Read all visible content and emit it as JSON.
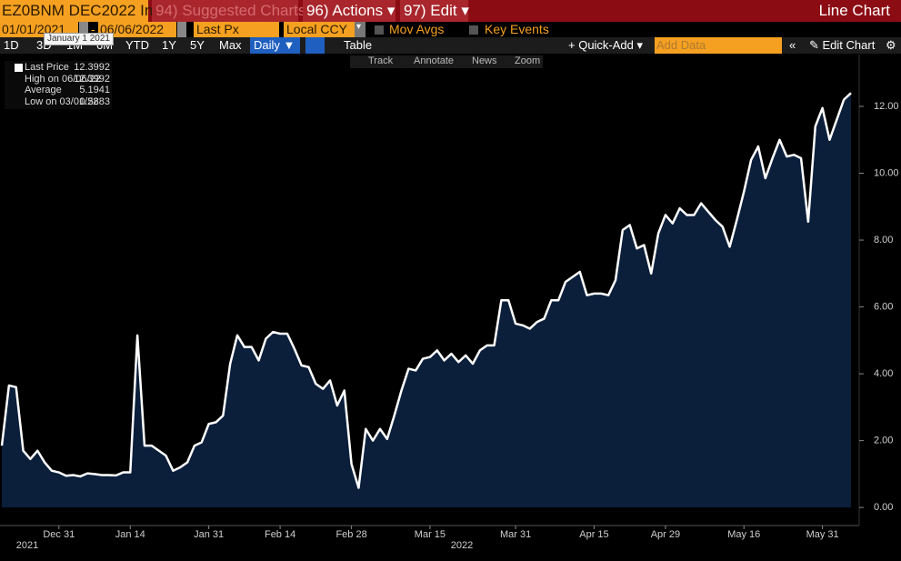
{
  "header": {
    "security": "EZ0BNM DEC2022 In",
    "suggested": "94) Suggested Charts",
    "actions": "96) Actions",
    "edit": "97) Edit",
    "view": "Line Chart"
  },
  "controls": {
    "start_date": "01/01/2021",
    "end_date": "06/06/2022",
    "tooltip": "January 1 2021",
    "field": "Last Px",
    "currency": "Local CCY",
    "mov_avgs": "Mov Avgs",
    "key_events": "Key Events"
  },
  "toolbar": {
    "ranges": [
      "1D",
      "3D",
      "1M",
      "6M",
      "YTD",
      "1Y",
      "5Y",
      "Max"
    ],
    "frequency": "Daily ▼",
    "table": "Table",
    "quick_add": "+ Quick-Add ▾",
    "add_data": "Add Data",
    "edit_chart": "Edit Chart"
  },
  "chart_tools": [
    "Track",
    "Annotate",
    "News",
    "Zoom"
  ],
  "legend": [
    {
      "label": "Last Price",
      "value": "12.3992"
    },
    {
      "label": "High on 06/06/22",
      "value": "12.3992"
    },
    {
      "label": "Average",
      "value": "5.1941"
    },
    {
      "label": "Low on 03/01/22",
      "value": "0.5883"
    }
  ],
  "chart_data": {
    "type": "area",
    "categories": [
      null,
      null,
      null,
      null,
      null,
      null,
      null,
      null,
      "Dec 31",
      null,
      null,
      null,
      null,
      null,
      null,
      null,
      null,
      null,
      "Jan 14",
      null,
      null,
      null,
      null,
      null,
      null,
      null,
      null,
      null,
      null,
      "Jan 31",
      null,
      null,
      null,
      null,
      null,
      null,
      null,
      null,
      null,
      "Feb 14",
      null,
      null,
      null,
      null,
      null,
      null,
      null,
      null,
      null,
      "Feb 28",
      null,
      null,
      null,
      null,
      null,
      null,
      null,
      null,
      null,
      null,
      "Mar 15",
      null,
      null,
      null,
      null,
      null,
      null,
      null,
      null,
      null,
      null,
      null,
      "Mar 31",
      null,
      null,
      null,
      null,
      null,
      null,
      null,
      null,
      null,
      null,
      "Apr 15",
      null,
      null,
      null,
      null,
      null,
      null,
      null,
      null,
      null,
      "Apr 29",
      null,
      null,
      null,
      null,
      null,
      null,
      null,
      null,
      null,
      null,
      "May 16",
      null,
      null,
      null,
      null,
      null,
      null,
      null,
      null,
      null,
      null,
      "May 31",
      null,
      null,
      null,
      null
    ],
    "year_labels": [
      "2021",
      "2022"
    ],
    "series": [
      {
        "name": "Last Price",
        "color": "#ffffff",
        "fill": "#0b1f3b",
        "values": [
          1.85,
          3.65,
          3.6,
          1.7,
          1.45,
          1.7,
          1.35,
          1.1,
          1.05,
          0.95,
          0.97,
          0.93,
          1.02,
          1.0,
          0.97,
          0.97,
          0.96,
          1.05,
          1.05,
          5.15,
          1.85,
          1.85,
          1.7,
          1.55,
          1.1,
          1.2,
          1.35,
          1.85,
          1.95,
          2.5,
          2.55,
          2.75,
          4.3,
          5.15,
          4.8,
          4.8,
          4.4,
          5.05,
          5.25,
          5.2,
          5.2,
          4.75,
          4.25,
          4.2,
          3.7,
          3.55,
          3.8,
          3.05,
          3.5,
          1.3,
          0.5883,
          2.35,
          2.0,
          2.35,
          2.05,
          2.75,
          3.5,
          4.15,
          4.1,
          4.45,
          4.5,
          4.7,
          4.4,
          4.6,
          4.35,
          4.55,
          4.3,
          4.7,
          4.85,
          4.85,
          6.2,
          6.2,
          5.5,
          5.45,
          5.35,
          5.55,
          5.65,
          6.2,
          6.2,
          6.75,
          6.9,
          7.05,
          6.35,
          6.4,
          6.4,
          6.35,
          6.8,
          8.3,
          8.45,
          7.75,
          7.85,
          7.0,
          8.2,
          8.75,
          8.5,
          8.95,
          8.75,
          8.75,
          9.1,
          8.85,
          8.6,
          8.4,
          7.8,
          8.6,
          9.45,
          10.4,
          10.8,
          9.85,
          10.45,
          11.0,
          10.5,
          10.55,
          10.45,
          8.55,
          11.4,
          11.95,
          11.0,
          11.6,
          12.2,
          12.3992
        ]
      }
    ],
    "ylim": [
      -0.54,
      13.55
    ],
    "yticks": [
      {
        "value": 0,
        "label": "0.00"
      },
      {
        "value": 2,
        "label": "2.00"
      },
      {
        "value": 4,
        "label": "4.00"
      },
      {
        "value": 6,
        "label": "6.00"
      },
      {
        "value": 8,
        "label": "8.00"
      },
      {
        "value": 10,
        "label": "10.00"
      },
      {
        "value": 12,
        "label": "12.00"
      }
    ],
    "grid": false
  }
}
